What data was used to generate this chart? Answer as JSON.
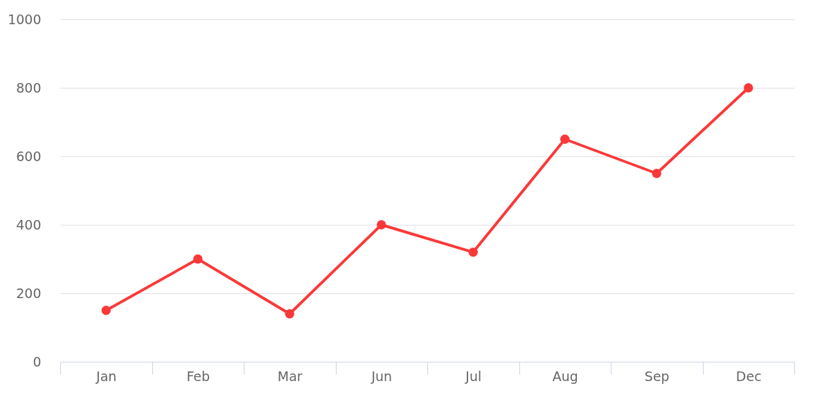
{
  "chart_data": {
    "type": "line",
    "categories": [
      "Jan",
      "Feb",
      "Mar",
      "Jun",
      "Jul",
      "Aug",
      "Sep",
      "Dec"
    ],
    "series": [
      {
        "color": "#f93939",
        "values": [
          150,
          300,
          140,
          400,
          320,
          650,
          550,
          800
        ]
      }
    ],
    "ylim": [
      0,
      1000
    ],
    "yticks": [
      0,
      200,
      400,
      600,
      800,
      1000
    ],
    "grid": "y",
    "marker": "circle",
    "line_style": "solid"
  }
}
